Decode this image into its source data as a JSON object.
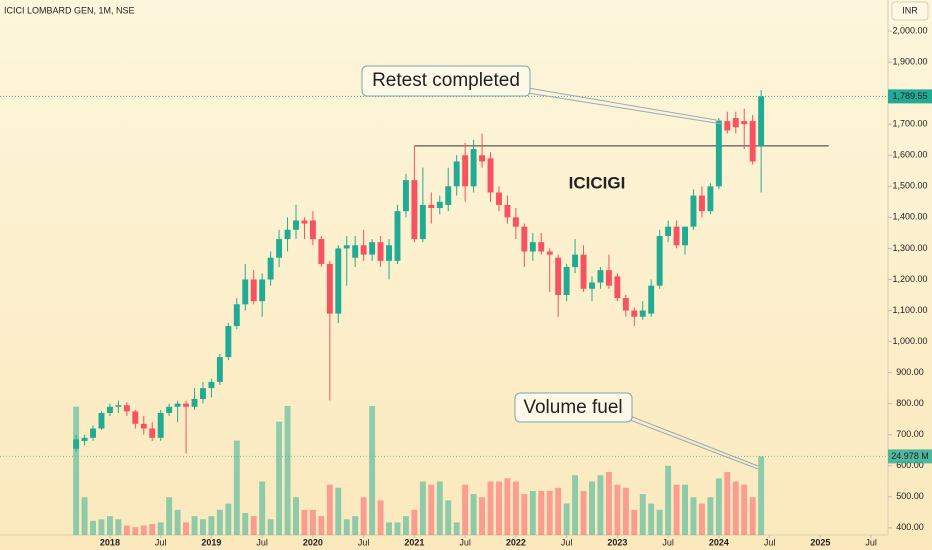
{
  "chart_data": {
    "type": "candlestick",
    "title": "ICICI LOMBARD GEN, 1M, NSE",
    "currency": "INR",
    "label": "ICICIGI",
    "annotations": [
      {
        "text": "Retest completed"
      },
      {
        "text": "Volume fuel"
      }
    ],
    "level": {
      "value": 1630,
      "from": "2021-01",
      "to": "2025-02"
    },
    "last_price_label": "1,789.55",
    "last_volume_label": "24.978 M",
    "up_color": "#22ab94",
    "down_color": "#f7525f",
    "x": [
      "2017-09",
      "2017-10",
      "2017-11",
      "2017-12",
      "2018-01",
      "2018-02",
      "2018-03",
      "2018-04",
      "2018-05",
      "2018-06",
      "2018-07",
      "2018-08",
      "2018-09",
      "2018-10",
      "2018-11",
      "2018-12",
      "2019-01",
      "2019-02",
      "2019-03",
      "2019-04",
      "2019-05",
      "2019-06",
      "2019-07",
      "2019-08",
      "2019-09",
      "2019-10",
      "2019-11",
      "2019-12",
      "2020-01",
      "2020-02",
      "2020-03",
      "2020-04",
      "2020-05",
      "2020-06",
      "2020-07",
      "2020-08",
      "2020-09",
      "2020-10",
      "2020-11",
      "2020-12",
      "2021-01",
      "2021-02",
      "2021-03",
      "2021-04",
      "2021-05",
      "2021-06",
      "2021-07",
      "2021-08",
      "2021-09",
      "2021-10",
      "2021-11",
      "2021-12",
      "2022-01",
      "2022-02",
      "2022-03",
      "2022-04",
      "2022-05",
      "2022-06",
      "2022-07",
      "2022-08",
      "2022-09",
      "2022-10",
      "2022-11",
      "2022-12",
      "2023-01",
      "2023-02",
      "2023-03",
      "2023-04",
      "2023-05",
      "2023-06",
      "2023-07",
      "2023-08",
      "2023-09",
      "2023-10",
      "2023-11",
      "2023-12",
      "2024-01",
      "2024-02",
      "2024-03",
      "2024-04",
      "2024-05",
      "2024-06"
    ],
    "open": [
      655,
      680,
      690,
      720,
      770,
      790,
      795,
      775,
      735,
      720,
      690,
      770,
      790,
      800,
      790,
      815,
      850,
      870,
      950,
      1050,
      1120,
      1200,
      1130,
      1200,
      1270,
      1330,
      1360,
      1390,
      1390,
      1330,
      1250,
      1090,
      1300,
      1270,
      1310,
      1280,
      1320,
      1260,
      1260,
      1420,
      1520,
      1330,
      1440,
      1430,
      1440,
      1500,
      1600,
      1500,
      1600,
      1590,
      1480,
      1440,
      1400,
      1370,
      1290,
      1320,
      1290,
      1270,
      1150,
      1240,
      1280,
      1170,
      1190,
      1230,
      1210,
      1140,
      1100,
      1080,
      1090,
      1180,
      1340,
      1370,
      1310,
      1370,
      1470,
      1420,
      1500,
      1710,
      1720,
      1710,
      1710,
      1630
    ],
    "high": [
      700,
      700,
      730,
      775,
      800,
      810,
      805,
      780,
      760,
      740,
      780,
      800,
      810,
      810,
      850,
      870,
      880,
      960,
      1060,
      1140,
      1250,
      1230,
      1220,
      1290,
      1360,
      1400,
      1440,
      1400,
      1420,
      1340,
      1260,
      1310,
      1340,
      1340,
      1360,
      1330,
      1340,
      1330,
      1440,
      1540,
      1630,
      1560,
      1480,
      1470,
      1560,
      1600,
      1640,
      1650,
      1670,
      1610,
      1500,
      1470,
      1430,
      1380,
      1350,
      1350,
      1300,
      1280,
      1250,
      1330,
      1310,
      1210,
      1240,
      1280,
      1220,
      1150,
      1110,
      1130,
      1200,
      1360,
      1390,
      1390,
      1370,
      1490,
      1500,
      1510,
      1720,
      1740,
      1740,
      1750,
      1730,
      1810
    ],
    "low": [
      645,
      665,
      680,
      715,
      760,
      770,
      760,
      720,
      700,
      680,
      680,
      760,
      740,
      640,
      780,
      800,
      820,
      860,
      940,
      1040,
      1100,
      1120,
      1080,
      1180,
      1240,
      1290,
      1330,
      1330,
      1310,
      1240,
      810,
      1060,
      1180,
      1240,
      1260,
      1260,
      1240,
      1200,
      1250,
      1400,
      1320,
      1320,
      1380,
      1410,
      1420,
      1470,
      1450,
      1480,
      1560,
      1450,
      1420,
      1380,
      1330,
      1240,
      1260,
      1280,
      1160,
      1080,
      1130,
      1220,
      1160,
      1130,
      1170,
      1170,
      1130,
      1080,
      1050,
      1070,
      1080,
      1170,
      1320,
      1300,
      1280,
      1360,
      1400,
      1410,
      1490,
      1670,
      1670,
      1620,
      1570,
      1480
    ],
    "close": [
      685,
      690,
      720,
      770,
      790,
      795,
      775,
      735,
      720,
      690,
      770,
      790,
      800,
      790,
      815,
      850,
      870,
      950,
      1050,
      1120,
      1200,
      1130,
      1200,
      1270,
      1330,
      1360,
      1390,
      1380,
      1330,
      1250,
      1090,
      1300,
      1310,
      1310,
      1280,
      1320,
      1260,
      1310,
      1420,
      1520,
      1330,
      1440,
      1430,
      1450,
      1500,
      1580,
      1500,
      1620,
      1580,
      1480,
      1440,
      1400,
      1370,
      1290,
      1320,
      1290,
      1280,
      1150,
      1240,
      1280,
      1170,
      1190,
      1230,
      1180,
      1140,
      1100,
      1080,
      1100,
      1180,
      1340,
      1370,
      1310,
      1370,
      1470,
      1420,
      1500,
      1710,
      1680,
      1690,
      1700,
      1580,
      1789.55
    ],
    "volume": [
      40.8,
      12,
      4.5,
      5,
      6,
      5,
      3,
      2.5,
      3,
      3.5,
      4,
      12,
      8,
      4,
      6,
      5,
      6,
      8,
      10,
      30,
      7,
      6,
      17,
      5,
      36,
      41,
      12,
      8,
      8,
      6,
      16,
      15,
      5,
      6,
      12,
      41,
      11,
      4,
      4,
      6,
      8,
      17,
      16,
      17,
      11,
      4,
      16,
      13,
      12,
      17,
      17,
      18,
      17,
      13,
      14,
      14,
      14,
      15,
      10,
      19,
      14,
      17,
      19,
      20,
      16,
      15,
      8,
      13,
      10,
      8,
      22,
      16,
      16,
      12,
      10,
      12,
      18,
      20,
      17,
      16,
      12,
      24.978
    ],
    "xlim": [
      "2016-12",
      "2025-09"
    ],
    "xticks": [
      {
        "value": "2018-01",
        "label": "2018"
      },
      {
        "value": "2018-07",
        "label": "Jul"
      },
      {
        "value": "2019-01",
        "label": "2019"
      },
      {
        "value": "2019-07",
        "label": "Jul"
      },
      {
        "value": "2020-01",
        "label": "2020"
      },
      {
        "value": "2020-07",
        "label": "Jul"
      },
      {
        "value": "2021-01",
        "label": "2021"
      },
      {
        "value": "2021-07",
        "label": "Jul"
      },
      {
        "value": "2022-01",
        "label": "2022"
      },
      {
        "value": "2022-07",
        "label": "Jul"
      },
      {
        "value": "2023-01",
        "label": "2023"
      },
      {
        "value": "2023-07",
        "label": "Jul"
      },
      {
        "value": "2024-01",
        "label": "2024"
      },
      {
        "value": "2024-07",
        "label": "Jul"
      },
      {
        "value": "2025-01",
        "label": "2025"
      },
      {
        "value": "2025-07",
        "label": "Jul"
      }
    ],
    "ylim": [
      377,
      2100
    ],
    "yticks": [
      {
        "value": 400,
        "label": "400.00"
      },
      {
        "value": 500,
        "label": "500.00"
      },
      {
        "value": 600,
        "label": "600.00"
      },
      {
        "value": 700,
        "label": "700.00"
      },
      {
        "value": 800,
        "label": "800.00"
      },
      {
        "value": 900,
        "label": "900.00"
      },
      {
        "value": 1000,
        "label": "1,000.00"
      },
      {
        "value": 1100,
        "label": "1,100.00"
      },
      {
        "value": 1200,
        "label": "1,200.00"
      },
      {
        "value": 1300,
        "label": "1,300.00"
      },
      {
        "value": 1400,
        "label": "1,400.00"
      },
      {
        "value": 1500,
        "label": "1,500.00"
      },
      {
        "value": 1600,
        "label": "1,600.00"
      },
      {
        "value": 1700,
        "label": "1,700.00"
      },
      {
        "value": 1900,
        "label": "1,900.00"
      },
      {
        "value": 2000,
        "label": "2,000.00"
      }
    ],
    "vlim": [
      0,
      170
    ]
  }
}
